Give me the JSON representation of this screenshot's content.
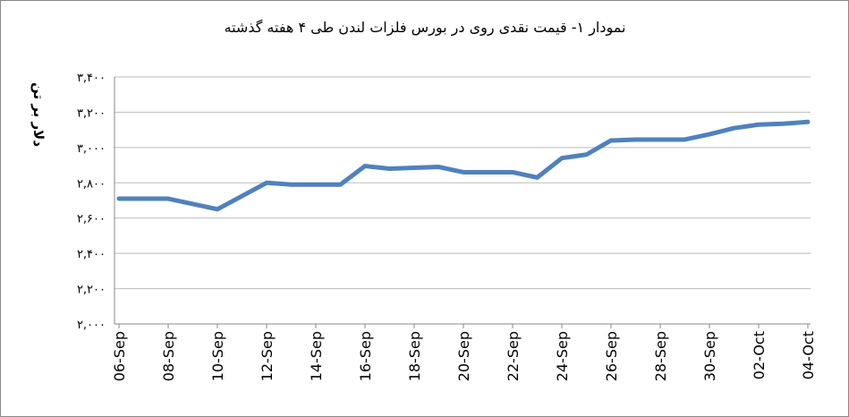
{
  "chart_data": {
    "type": "line",
    "title": "نمودار ۱- قیمت نقدی روی  در بورس فلزات لندن طی ۴ هفته گذشته",
    "y_label": "دلار بر تن",
    "categories": [
      "06-Sep",
      null,
      "08-Sep",
      null,
      "10-Sep",
      null,
      "12-Sep",
      null,
      "14-Sep",
      null,
      "16-Sep",
      null,
      "18-Sep",
      null,
      "20-Sep",
      null,
      "22-Sep",
      null,
      "24-Sep",
      null,
      "26-Sep",
      null,
      "28-Sep",
      null,
      "30-Sep",
      null,
      "02-Oct",
      null,
      "04-Oct"
    ],
    "series": [
      {
        "name": null,
        "color": "#4f81bd",
        "values": [
          2710,
          2710,
          2710,
          2680,
          2650,
          2725,
          2800,
          2790,
          2790,
          2790,
          2895,
          2880,
          2885,
          2890,
          2860,
          2860,
          2860,
          2830,
          2940,
          2960,
          3040,
          3045,
          3045,
          3045,
          3075,
          3110,
          3130,
          3135,
          3145
        ]
      }
    ],
    "ylim": [
      2000,
      3400
    ],
    "yticks": [
      {
        "value": 2000,
        "label": "۲,۰۰۰"
      },
      {
        "value": 2200,
        "label": "۲,۲۰۰"
      },
      {
        "value": 2400,
        "label": "۲,۴۰۰"
      },
      {
        "value": 2600,
        "label": "۲,۶۰۰"
      },
      {
        "value": 2800,
        "label": "۲,۸۰۰"
      },
      {
        "value": 3000,
        "label": "۳,۰۰۰"
      },
      {
        "value": 3200,
        "label": "۳,۲۰۰"
      },
      {
        "value": 3400,
        "label": "۳,۴۰۰"
      }
    ],
    "grid": true
  }
}
